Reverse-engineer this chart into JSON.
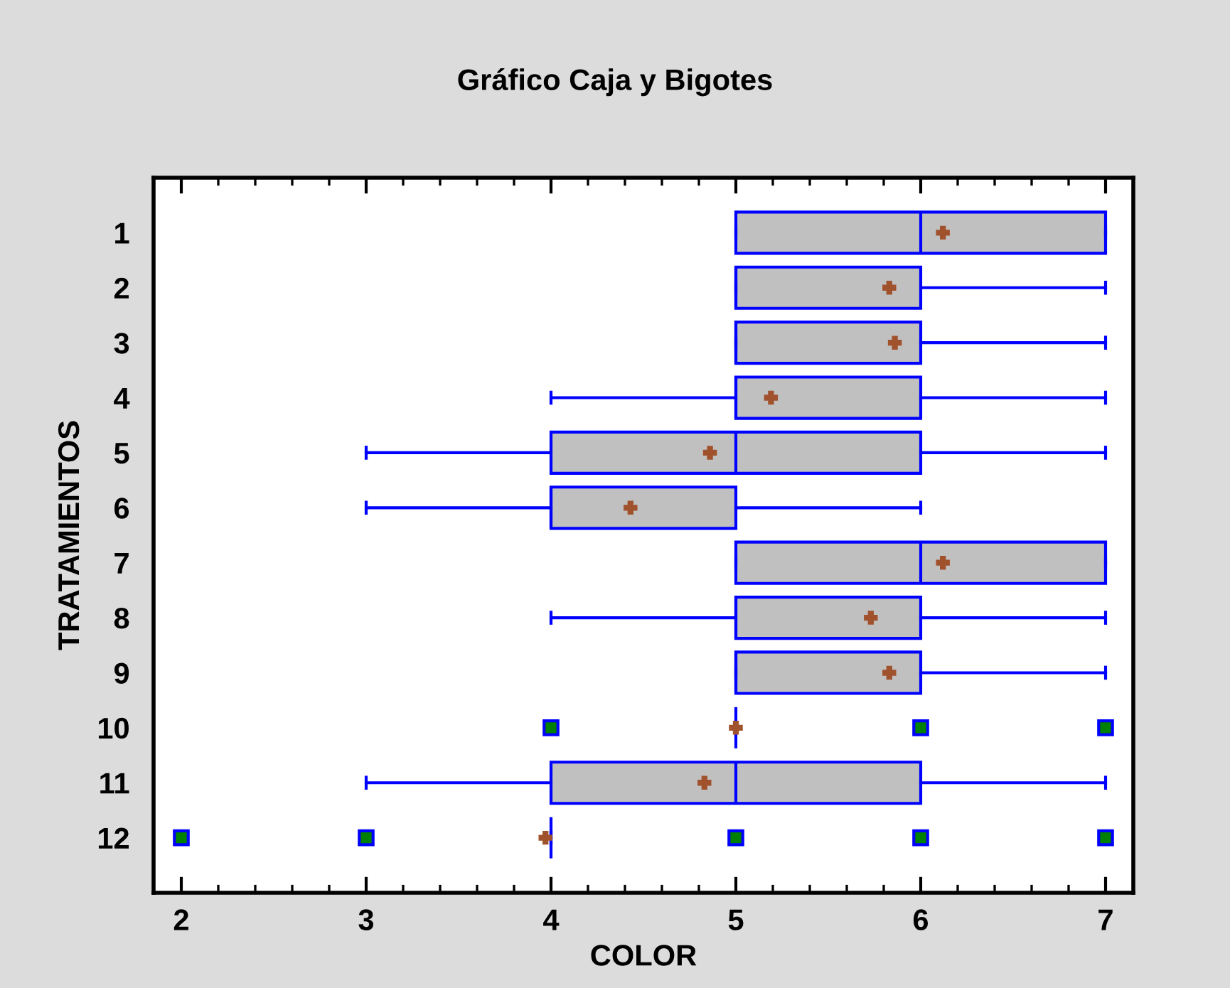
{
  "chart_data": {
    "type": "box",
    "orientation": "horizontal",
    "title": "Gráfico Caja y Bigotes",
    "xlabel": "COLOR",
    "ylabel": "TRATAMIENTOS",
    "categories": [
      "1",
      "2",
      "3",
      "4",
      "5",
      "6",
      "7",
      "8",
      "9",
      "10",
      "11",
      "12"
    ],
    "boxes": [
      {
        "low": 5,
        "q1": 5,
        "median": 6,
        "q3": 7,
        "high": 7,
        "mean": 6.12
      },
      {
        "low": 5,
        "q1": 5,
        "median": 5,
        "q3": 6,
        "high": 7,
        "mean": 5.83
      },
      {
        "low": 5,
        "q1": 5,
        "median": 5,
        "q3": 6,
        "high": 7,
        "mean": 5.86
      },
      {
        "low": 4,
        "q1": 5,
        "median": 5,
        "q3": 6,
        "high": 7,
        "mean": 5.19
      },
      {
        "low": 3,
        "q1": 4,
        "median": 5,
        "q3": 6,
        "high": 7,
        "mean": 4.86
      },
      {
        "low": 3,
        "q1": 4,
        "median": 4,
        "q3": 5,
        "high": 6,
        "mean": 4.43
      },
      {
        "low": 5,
        "q1": 5,
        "median": 6,
        "q3": 7,
        "high": 7,
        "mean": 6.12
      },
      {
        "low": 4,
        "q1": 5,
        "median": 5,
        "q3": 6,
        "high": 7,
        "mean": 5.73
      },
      {
        "low": 5,
        "q1": 5,
        "median": 5,
        "q3": 6,
        "high": 7,
        "mean": 5.83
      },
      {
        "low": 5,
        "q1": 5,
        "median": 5,
        "q3": 5,
        "high": 5,
        "mean": 5.0,
        "outliers": [
          4,
          6,
          7
        ]
      },
      {
        "low": 3,
        "q1": 4,
        "median": 5,
        "q3": 6,
        "high": 7,
        "mean": 4.83
      },
      {
        "low": 4,
        "q1": 4,
        "median": 4,
        "q3": 4,
        "high": 4,
        "mean": 3.97,
        "outliers": [
          2,
          3,
          5,
          6,
          7
        ]
      }
    ],
    "xlim": [
      1.85,
      7.15
    ],
    "xticks": [
      2,
      3,
      4,
      5,
      6,
      7
    ],
    "grid": false
  }
}
